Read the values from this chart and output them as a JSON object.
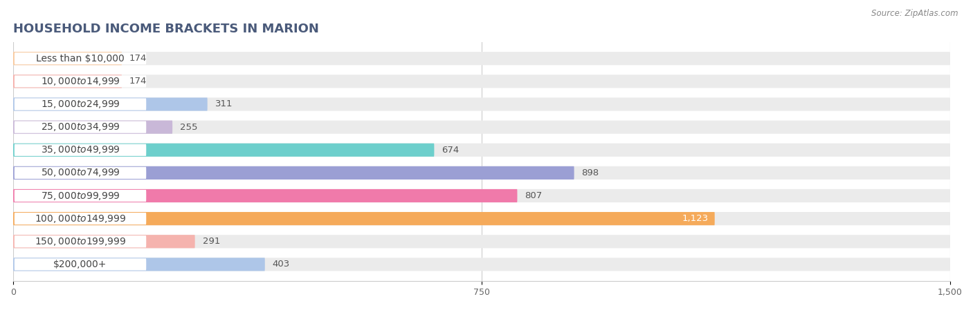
{
  "title": "HOUSEHOLD INCOME BRACKETS IN MARION",
  "source": "Source: ZipAtlas.com",
  "categories": [
    "Less than $10,000",
    "$10,000 to $14,999",
    "$15,000 to $24,999",
    "$25,000 to $34,999",
    "$35,000 to $49,999",
    "$50,000 to $74,999",
    "$75,000 to $99,999",
    "$100,000 to $149,999",
    "$150,000 to $199,999",
    "$200,000+"
  ],
  "values": [
    174,
    174,
    311,
    255,
    674,
    898,
    807,
    1123,
    291,
    403
  ],
  "bar_colors": [
    "#f9c89b",
    "#f5aea9",
    "#aec6e8",
    "#c9b8d8",
    "#6dcfcc",
    "#9b9fd4",
    "#f07aaa",
    "#f5aa5a",
    "#f5b3ae",
    "#aec6e8"
  ],
  "xlim": [
    0,
    1500
  ],
  "xticks": [
    0,
    750,
    1500
  ],
  "background_color": "#ffffff",
  "bar_background_color": "#ebebeb",
  "title_fontsize": 13,
  "label_fontsize": 10,
  "value_fontsize": 9.5,
  "bar_height": 0.58,
  "title_color": "#4a5a7a",
  "label_color": "#444444",
  "value_color_inside": "#ffffff",
  "value_color_outside": "#555555",
  "pill_color": "#ffffff",
  "source_color": "#888888"
}
